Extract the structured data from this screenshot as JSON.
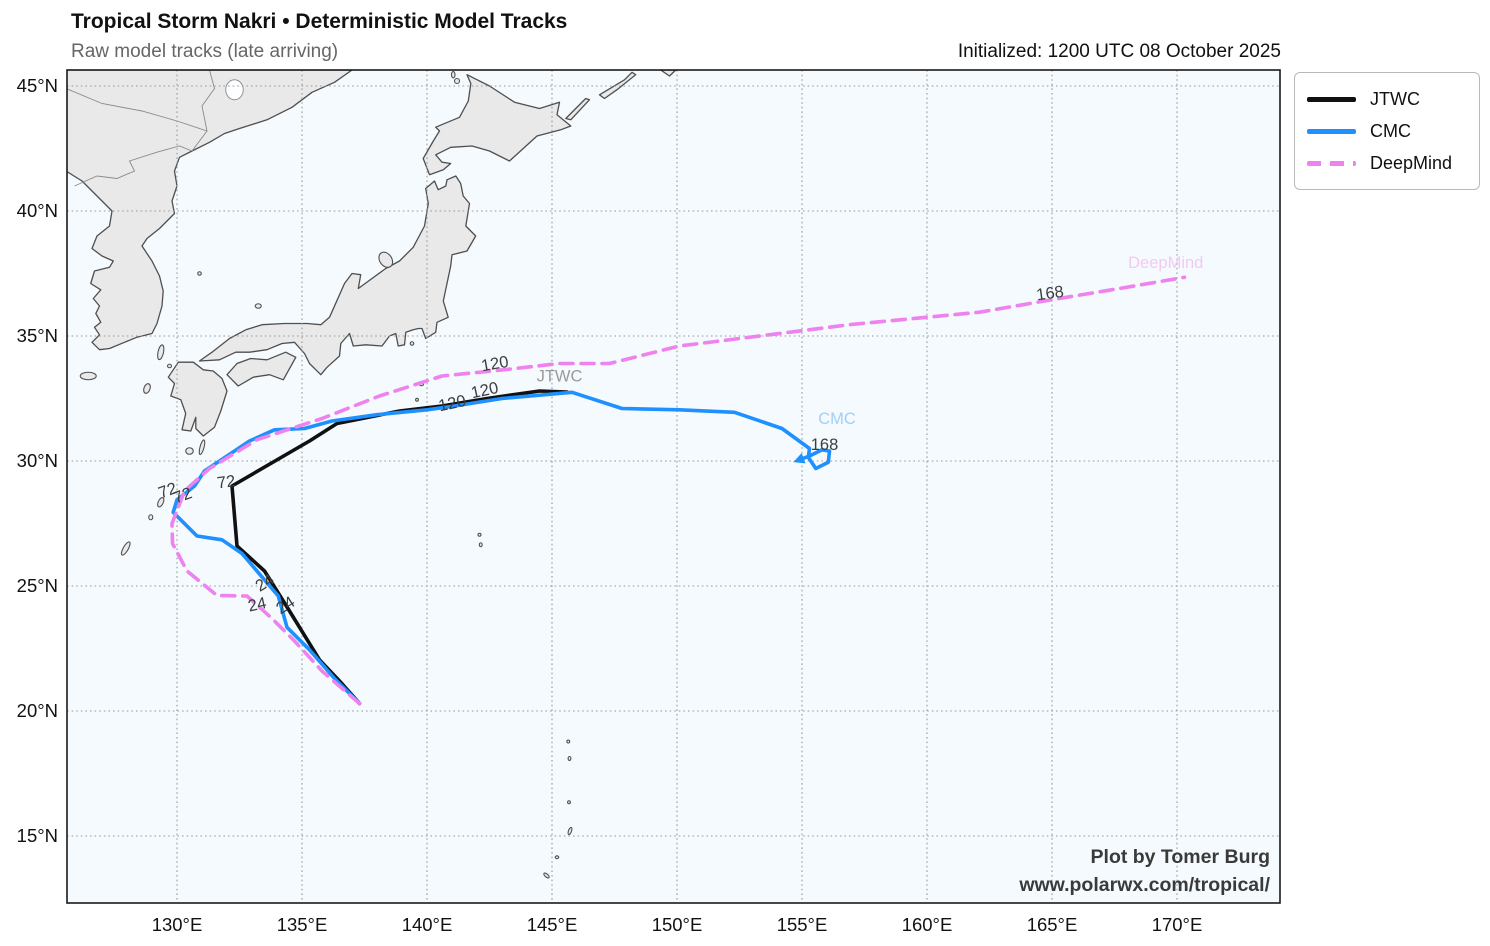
{
  "header": {
    "title": "Tropical Storm Nakri • Deterministic Model Tracks",
    "subtitle": "Raw model tracks (late arriving)",
    "initialized": "Initialized: 1200 UTC 08 October 2025"
  },
  "credit": {
    "line1": "Plot by Tomer Burg",
    "line2": "www.polarwx.com/tropical/"
  },
  "legend": {
    "items": [
      {
        "label": "JTWC",
        "color": "#111111",
        "style": "solid"
      },
      {
        "label": "CMC",
        "color": "#1E90FF",
        "style": "solid"
      },
      {
        "label": "DeepMind",
        "color": "#EE82EE",
        "style": "dashed"
      }
    ]
  },
  "colors": {
    "sea": "#f4fafd",
    "land": "#e9e9e9",
    "coast": "#4f4f4f",
    "grid": "#999999",
    "frame": "#1a1a1a",
    "hour_label": "#3d3d3d"
  },
  "chart_data": {
    "type": "line",
    "subtype": "tropical-cyclone-model-track-map",
    "title": "Tropical Storm Nakri • Deterministic Model Tracks",
    "x_axis": {
      "unit": "°E",
      "ticks": [
        130,
        135,
        140,
        145,
        150,
        155,
        160,
        165,
        170
      ],
      "range": [
        125.56,
        174.12
      ]
    },
    "y_axis": {
      "unit": "°N",
      "ticks": [
        15,
        20,
        25,
        30,
        35,
        40,
        45
      ],
      "range": [
        12.32,
        45.64
      ]
    },
    "grid": "dotted",
    "legend_position": "outside-top-right",
    "series": [
      {
        "name": "JTWC",
        "color": "#111111",
        "dash": "none",
        "width": 3.6,
        "points": [
          [
            137.3,
            20.3
          ],
          [
            136.5,
            21.2
          ],
          [
            135.7,
            22.05
          ],
          [
            134.5,
            24.0
          ],
          [
            133.5,
            25.6
          ],
          [
            132.4,
            26.6
          ],
          [
            132.2,
            29.0
          ],
          [
            135.3,
            30.8
          ],
          [
            136.4,
            31.5
          ],
          [
            138.9,
            32.0
          ],
          [
            140.6,
            32.2
          ],
          [
            142.4,
            32.5
          ],
          [
            144.5,
            32.8
          ],
          [
            145.6,
            32.76
          ]
        ]
      },
      {
        "name": "CMC",
        "color": "#1E90FF",
        "dash": "none",
        "width": 3.6,
        "arrow_end": true,
        "points": [
          [
            137.3,
            20.3
          ],
          [
            136.3,
            21.3
          ],
          [
            135.3,
            22.45
          ],
          [
            134.4,
            23.35
          ],
          [
            134.05,
            24.6
          ],
          [
            132.6,
            26.3
          ],
          [
            131.8,
            26.85
          ],
          [
            130.8,
            27.0
          ],
          [
            129.85,
            27.95
          ],
          [
            130.0,
            28.45
          ],
          [
            130.7,
            29.0
          ],
          [
            131.1,
            29.6
          ],
          [
            132.9,
            30.8
          ],
          [
            133.9,
            31.25
          ],
          [
            135.1,
            31.3
          ],
          [
            136.2,
            31.6
          ],
          [
            138.0,
            31.85
          ],
          [
            140.0,
            32.05
          ],
          [
            141.1,
            32.2
          ],
          [
            143.0,
            32.5
          ],
          [
            145.8,
            32.75
          ],
          [
            147.8,
            32.1
          ],
          [
            150.1,
            32.05
          ],
          [
            152.3,
            31.95
          ],
          [
            154.2,
            31.3
          ],
          [
            155.3,
            30.5
          ],
          [
            155.25,
            30.15
          ],
          [
            155.55,
            29.7
          ],
          [
            156.05,
            29.95
          ],
          [
            156.1,
            30.4
          ],
          [
            155.8,
            30.45
          ],
          [
            155.3,
            30.2
          ],
          [
            154.9,
            30.05
          ]
        ]
      },
      {
        "name": "DeepMind",
        "color": "#EE82EE",
        "dash": "13 8",
        "width": 3.6,
        "points": [
          [
            137.3,
            20.3
          ],
          [
            135.8,
            21.6
          ],
          [
            134.7,
            22.8
          ],
          [
            133.8,
            23.7
          ],
          [
            132.8,
            24.6
          ],
          [
            131.6,
            24.62
          ],
          [
            130.4,
            25.6
          ],
          [
            129.82,
            26.7
          ],
          [
            129.8,
            27.5
          ],
          [
            130.3,
            28.8
          ],
          [
            131.3,
            29.7
          ],
          [
            133.2,
            30.85
          ],
          [
            135.8,
            31.7
          ],
          [
            138.1,
            32.6
          ],
          [
            140.6,
            33.4
          ],
          [
            142.8,
            33.62
          ],
          [
            145.3,
            33.9
          ],
          [
            147.3,
            33.9
          ],
          [
            150.1,
            34.6
          ],
          [
            153.3,
            35.0
          ],
          [
            156.9,
            35.45
          ],
          [
            162.1,
            35.95
          ],
          [
            165.0,
            36.45
          ],
          [
            167.7,
            36.9
          ],
          [
            170.3,
            37.35
          ]
        ]
      }
    ],
    "hour_labels": [
      {
        "text": "24",
        "lon": 133.62,
        "lat": 24.95,
        "rot": -32
      },
      {
        "text": "24",
        "lon": 133.25,
        "lat": 24.05,
        "rot": -12
      },
      {
        "text": "24",
        "lon": 134.45,
        "lat": 24.05,
        "rot": -32
      },
      {
        "text": "72",
        "lon": 132.0,
        "lat": 28.95,
        "rot": -8
      },
      {
        "text": "72",
        "lon": 129.7,
        "lat": 28.62,
        "rot": -20
      },
      {
        "text": "72",
        "lon": 130.3,
        "lat": 28.42,
        "rot": -20
      },
      {
        "text": "120",
        "lon": 141.05,
        "lat": 32.1,
        "rot": -12
      },
      {
        "text": "120",
        "lon": 142.35,
        "lat": 32.62,
        "rot": -12
      },
      {
        "text": "120",
        "lon": 142.75,
        "lat": 33.68,
        "rot": -10
      },
      {
        "text": "168",
        "lon": 155.9,
        "lat": 30.45,
        "rot": 0
      },
      {
        "text": "168",
        "lon": 164.95,
        "lat": 36.5,
        "rot": -8
      }
    ],
    "end_labels": [
      {
        "text": "JTWC",
        "lon": 145.3,
        "lat": 33.18,
        "color": "#9a9a9a"
      },
      {
        "text": "CMC",
        "lon": 156.4,
        "lat": 31.48,
        "color": "#9fd0f7"
      },
      {
        "text": "DeepMind",
        "lon": 169.55,
        "lat": 37.72,
        "color": "#f5c9f2"
      }
    ]
  }
}
